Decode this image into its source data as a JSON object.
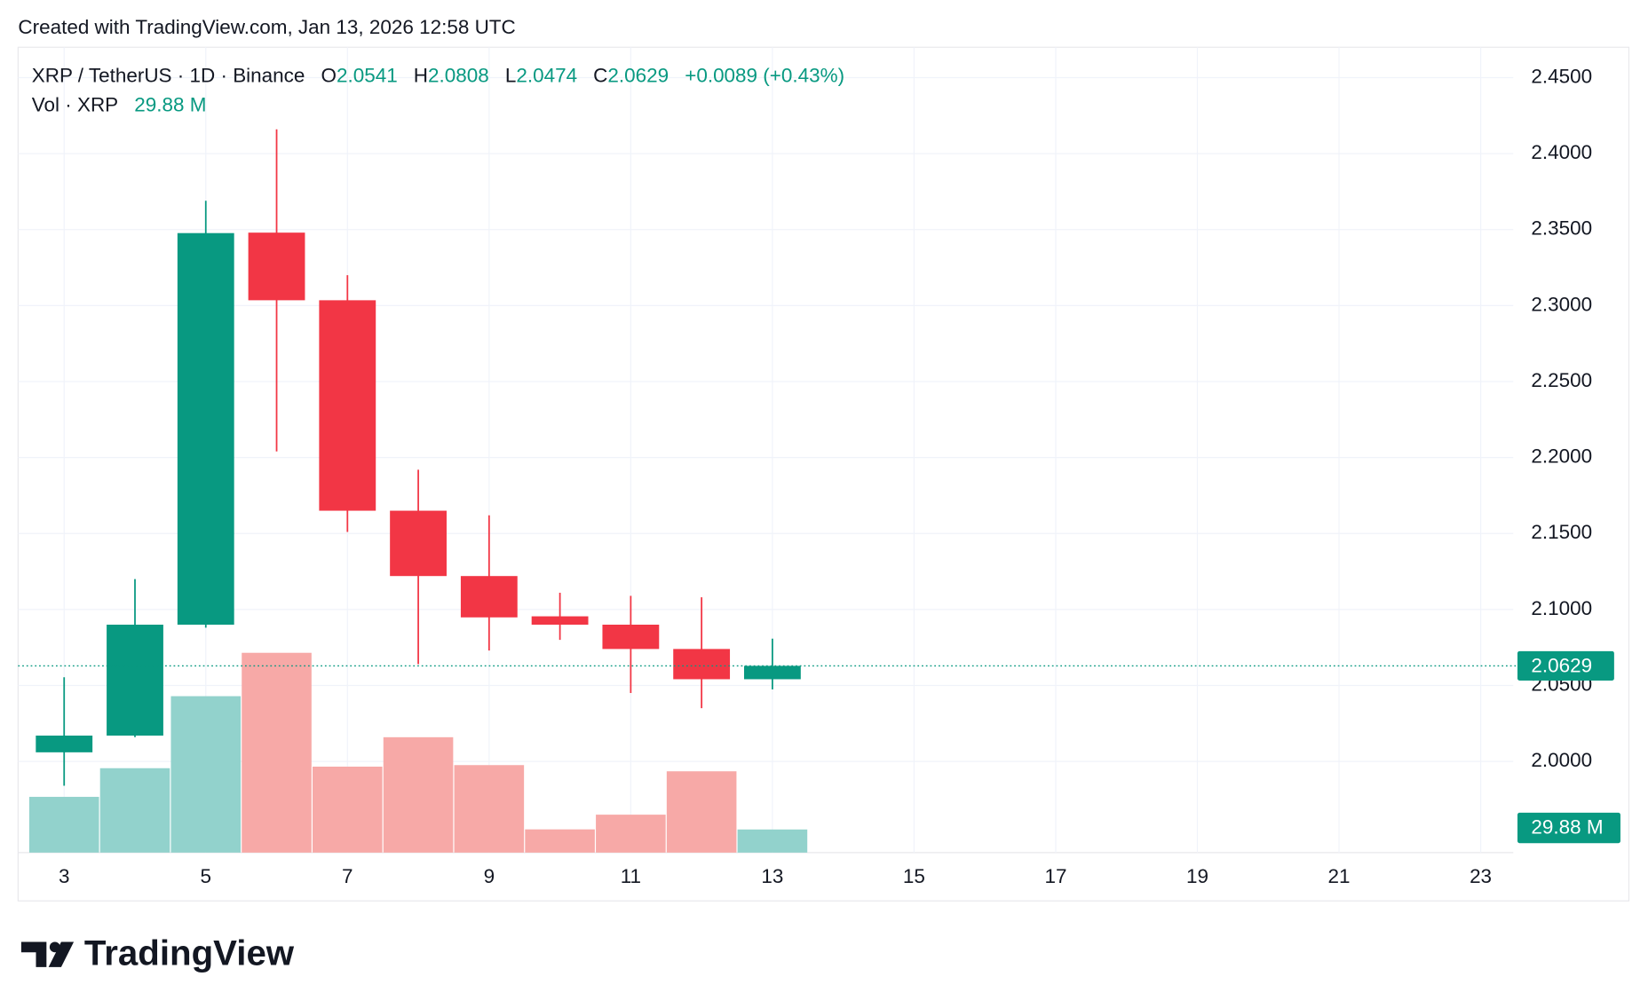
{
  "header": {
    "created": "Created with TradingView.com, Jan 13, 2026 12:58 UTC",
    "brand": "TradingView"
  },
  "chart_data": {
    "type": "candlestick",
    "legend": {
      "symbol": "XRP / TetherUS · 1D · Binance",
      "open_label": "O",
      "high_label": "H",
      "low_label": "L",
      "close_label": "C",
      "change": "+0.0089 (+0.43%)",
      "vol_title": "Vol · XRP",
      "vol_value": "29.88 M"
    },
    "x": [
      3,
      4,
      5,
      6,
      7,
      8,
      9,
      10,
      11,
      12,
      13
    ],
    "open": [
      2.006,
      2.017,
      2.09,
      2.348,
      2.3035,
      2.165,
      2.122,
      2.0955,
      2.09,
      2.074,
      2.0541
    ],
    "high": [
      2.0554,
      2.12,
      2.369,
      2.416,
      2.32,
      2.192,
      2.162,
      2.111,
      2.109,
      2.108,
      2.0808
    ],
    "low": [
      1.984,
      2.016,
      2.088,
      2.204,
      2.151,
      2.064,
      2.073,
      2.08,
      2.045,
      2.035,
      2.0474
    ],
    "close": [
      2.017,
      2.09,
      2.3477,
      2.3035,
      2.165,
      2.122,
      2.0948,
      2.09,
      2.074,
      2.0541,
      2.0629
    ],
    "volume": [
      72,
      109,
      202,
      258,
      111,
      149,
      113,
      30,
      49,
      105,
      29.88
    ],
    "up_color": "#089981",
    "down_color": "#f23645",
    "up_volume_color": "#92d2cc",
    "down_volume_color": "#f7a9a7",
    "xlim": [
      2.35,
      23.46
    ],
    "xticks": [
      3,
      5,
      7,
      9,
      11,
      13,
      15,
      17,
      19,
      21,
      23
    ],
    "ylim": [
      1.94,
      2.47
    ],
    "yticks": [
      {
        "value": 2.0,
        "label": "2.0000"
      },
      {
        "value": 2.05,
        "label": "2.0500"
      },
      {
        "value": 2.1,
        "label": "2.1000"
      },
      {
        "value": 2.15,
        "label": "2.1500"
      },
      {
        "value": 2.2,
        "label": "2.2000"
      },
      {
        "value": 2.25,
        "label": "2.2500"
      },
      {
        "value": 2.3,
        "label": "2.3000"
      },
      {
        "value": 2.35,
        "label": "2.3500"
      },
      {
        "value": 2.4,
        "label": "2.4000"
      },
      {
        "value": 2.45,
        "label": "2.4500"
      }
    ],
    "volume_ylim": [
      0,
      1040
    ],
    "grid": true
  }
}
